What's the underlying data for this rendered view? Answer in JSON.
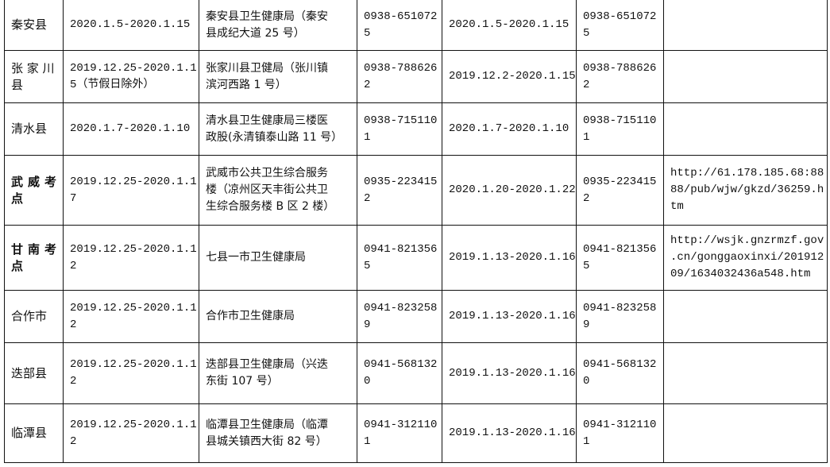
{
  "rows": [
    {
      "name": [
        "秦安县"
      ],
      "bold": false,
      "period1": [
        "2020.1.5-2020.1.15"
      ],
      "address": [
        "秦安县卫生健康局（秦安",
        "县成纪大道 25 号）"
      ],
      "phone1": [
        "0938-651072",
        "5"
      ],
      "period2": [
        "2020.1.5-2020.1.15"
      ],
      "phone2": [
        "0938-651072",
        "5"
      ],
      "url": []
    },
    {
      "name": [
        "张 家 川",
        "县"
      ],
      "bold": false,
      "period1": [
        "2019.12.25-2020.1.1",
        "5（节假日除外）"
      ],
      "address": [
        "张家川县卫健局（张川镇",
        "滨河西路 1 号）"
      ],
      "phone1": [
        "0938-788626",
        "2"
      ],
      "period2": [
        "2019.12.2-2020.1.15"
      ],
      "phone2": [
        "0938-788626",
        "2"
      ],
      "url": []
    },
    {
      "name": [
        "清水县"
      ],
      "bold": false,
      "period1": [
        "2020.1.7-2020.1.10"
      ],
      "address": [
        "清水县卫生健康局三楼医",
        "政股(永清镇泰山路 11 号）"
      ],
      "phone1": [
        "0938-715110",
        "1"
      ],
      "period2": [
        "2020.1.7-2020.1.10"
      ],
      "phone2": [
        "0938-715110",
        "1"
      ],
      "url": []
    },
    {
      "name": [
        "武威考",
        "点"
      ],
      "bold": true,
      "period1": [
        "2019.12.25-2020.1.1",
        "7"
      ],
      "address": [
        "武威市公共卫生综合服务",
        "楼（凉州区天丰街公共卫",
        "生综合服务楼 B 区 2 楼）"
      ],
      "phone1": [
        "0935-223415",
        "2"
      ],
      "period2": [
        "2020.1.20-2020.1.22"
      ],
      "phone2": [
        "0935-223415",
        "2"
      ],
      "url": [
        "http://61.178.185.68:88",
        "88/pub/wjw/gkzd/36259.h",
        "tm"
      ]
    },
    {
      "name": [
        "甘南考",
        "点"
      ],
      "bold": true,
      "period1": [
        "2019.12.25-2020.1.1",
        "2"
      ],
      "address": [
        "七县一市卫生健康局"
      ],
      "phone1": [
        "0941-821356",
        "5"
      ],
      "period2": [
        "2019.1.13-2020.1.16"
      ],
      "phone2": [
        "0941-821356",
        "5"
      ],
      "url": [
        "http://wsjk.gnzrmzf.gov",
        ".cn/gonggaoxinxi/201912",
        "09/1634032436a548.htm"
      ]
    },
    {
      "name": [
        "合作市"
      ],
      "bold": false,
      "period1": [
        "2019.12.25-2020.1.1",
        "2"
      ],
      "address": [
        "合作市卫生健康局"
      ],
      "phone1": [
        "0941-823258",
        "9"
      ],
      "period2": [
        "2019.1.13-2020.1.16"
      ],
      "phone2": [
        "0941-823258",
        "9"
      ],
      "url": []
    },
    {
      "name": [
        "迭部县"
      ],
      "bold": false,
      "period1": [
        "2019.12.25-2020.1.1",
        "2"
      ],
      "address": [
        "迭部县卫生健康局（兴迭",
        "东街 107 号）"
      ],
      "phone1": [
        "0941-568132",
        "0"
      ],
      "period2": [
        "2019.1.13-2020.1.16"
      ],
      "phone2": [
        "0941-568132",
        "0"
      ],
      "url": []
    },
    {
      "name": [
        "临潭县"
      ],
      "bold": false,
      "period1": [
        "2019.12.25-2020.1.1",
        "2"
      ],
      "address": [
        "临潭县卫生健康局（临潭",
        "县城关镇西大街 82 号）"
      ],
      "phone1": [
        "0941-312110",
        "1"
      ],
      "period2": [
        "2019.1.13-2020.1.16"
      ],
      "phone2": [
        "0941-312110",
        "1"
      ],
      "url": []
    }
  ]
}
